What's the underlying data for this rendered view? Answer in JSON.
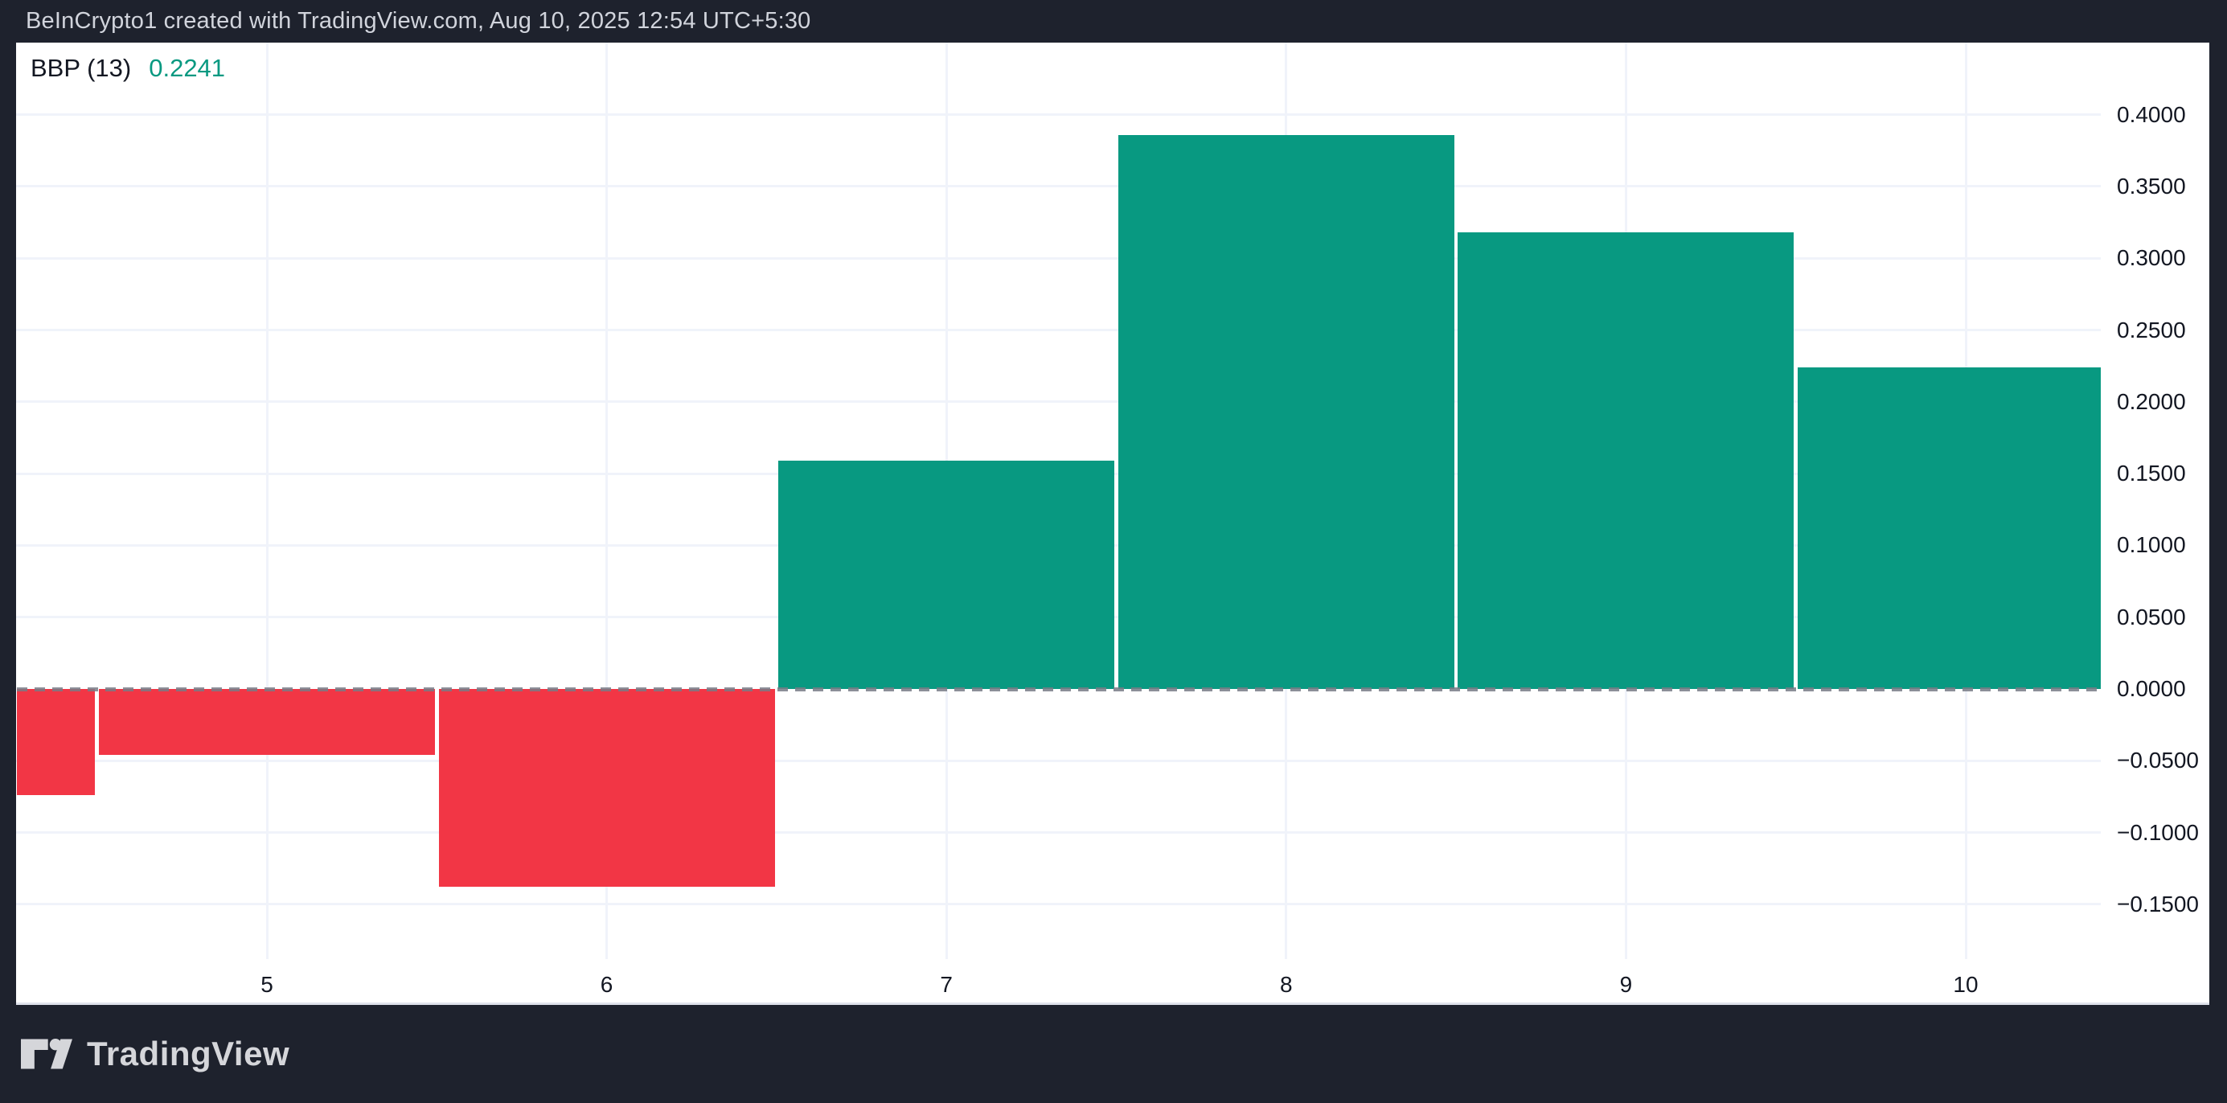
{
  "header": {
    "title": "BeInCrypto1 created with TradingView.com, Aug 10, 2025 12:54 UTC+5:30"
  },
  "indicator": {
    "name": "BBP (13)",
    "value": "0.2241"
  },
  "footer": {
    "brand": "TradingView"
  },
  "colors": {
    "chrome_bg": "#1e222d",
    "panel_bg": "#ffffff",
    "header_text": "#d1d4dc",
    "axis_text": "#131722",
    "gridline": "#f0f3fa",
    "zero_line": "#787b86",
    "positive": "#089981",
    "negative": "#f23645",
    "footer_logo": "#d5d6da"
  },
  "chart_data": {
    "type": "bar",
    "title": "BBP (13)",
    "subtitle": "Bull Bear Power histogram, current value 0.2241",
    "x": [
      4,
      5,
      6,
      7,
      8,
      9,
      10
    ],
    "values": [
      -0.074,
      -0.046,
      -0.138,
      0.159,
      0.386,
      0.318,
      0.2241
    ],
    "positive_color": "#089981",
    "negative_color": "#f23645",
    "x_ticks": [
      {
        "value": 5,
        "label": "5"
      },
      {
        "value": 6,
        "label": "6"
      },
      {
        "value": 7,
        "label": "7"
      },
      {
        "value": 8,
        "label": "8"
      },
      {
        "value": 9,
        "label": "9"
      },
      {
        "value": 10,
        "label": "10"
      }
    ],
    "y_ticks": [
      {
        "value": 0.4,
        "label": "0.4000"
      },
      {
        "value": 0.35,
        "label": "0.3500"
      },
      {
        "value": 0.3,
        "label": "0.3000"
      },
      {
        "value": 0.25,
        "label": "0.2500"
      },
      {
        "value": 0.2,
        "label": "0.2000"
      },
      {
        "value": 0.15,
        "label": "0.1500"
      },
      {
        "value": 0.1,
        "label": "0.1000"
      },
      {
        "value": 0.05,
        "label": "0.0500"
      },
      {
        "value": 0.0,
        "label": "0.0000"
      },
      {
        "value": -0.05,
        "label": "−0.0500"
      },
      {
        "value": -0.1,
        "label": "−0.1000"
      },
      {
        "value": -0.15,
        "label": "−0.1500"
      }
    ],
    "ylim": [
      -0.188,
      0.45
    ],
    "xlabel": "",
    "ylabel": "",
    "grid": true,
    "zero_line_style": "dashed",
    "legend_position": "top-left",
    "y_axis_side": "right"
  }
}
